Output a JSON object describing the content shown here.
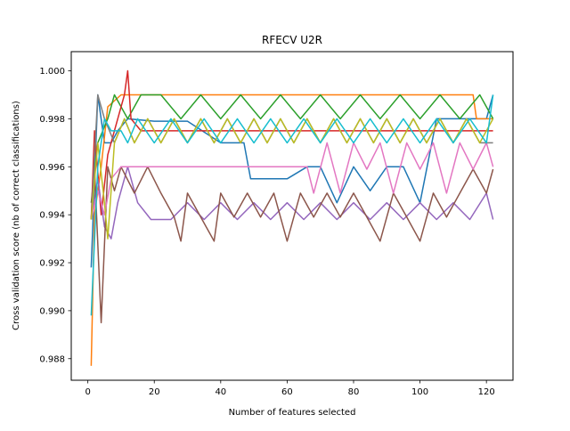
{
  "chart_data": {
    "type": "line",
    "title": "RFECV U2R",
    "xlabel": "Number of features selected",
    "ylabel": "Cross validation score (nb of correct classifications)",
    "xlim": [
      -5,
      128
    ],
    "ylim": [
      0.9871,
      1.0008
    ],
    "xticks": [
      0,
      20,
      40,
      60,
      80,
      100,
      120
    ],
    "yticks": [
      0.988,
      0.99,
      0.992,
      0.994,
      0.996,
      0.998,
      1.0
    ],
    "ytick_labels": [
      "0.988",
      "0.990",
      "0.992",
      "0.994",
      "0.996",
      "0.998",
      "1.000"
    ],
    "grid": false,
    "x_range": [
      1,
      122
    ],
    "series": [
      {
        "color": "#1f77b4",
        "points": [
          [
            1,
            0.9918
          ],
          [
            3,
            0.999
          ],
          [
            5,
            0.997
          ],
          [
            7,
            0.997
          ],
          [
            9,
            0.9975
          ],
          [
            12,
            0.998
          ],
          [
            20,
            0.9979
          ],
          [
            30,
            0.9979
          ],
          [
            40,
            0.997
          ],
          [
            47,
            0.997
          ],
          [
            49,
            0.9955
          ],
          [
            55,
            0.9955
          ],
          [
            60,
            0.9955
          ],
          [
            66,
            0.996
          ],
          [
            70,
            0.996
          ],
          [
            75,
            0.9945
          ],
          [
            80,
            0.996
          ],
          [
            85,
            0.995
          ],
          [
            90,
            0.996
          ],
          [
            95,
            0.996
          ],
          [
            100,
            0.9945
          ],
          [
            105,
            0.998
          ],
          [
            110,
            0.998
          ],
          [
            115,
            0.998
          ],
          [
            120,
            0.998
          ],
          [
            122,
            0.999
          ]
        ]
      },
      {
        "color": "#ff7f0e",
        "points": [
          [
            1,
            0.9877
          ],
          [
            2,
            0.994
          ],
          [
            4,
            0.996
          ],
          [
            6,
            0.9985
          ],
          [
            10,
            0.999
          ],
          [
            20,
            0.999
          ],
          [
            40,
            0.999
          ],
          [
            60,
            0.999
          ],
          [
            80,
            0.999
          ],
          [
            100,
            0.999
          ],
          [
            112,
            0.999
          ],
          [
            116,
            0.999
          ],
          [
            117,
            0.998
          ],
          [
            122,
            0.998
          ]
        ]
      },
      {
        "color": "#2ca02c",
        "points": [
          [
            1,
            0.9945
          ],
          [
            3,
            0.997
          ],
          [
            6,
            0.998
          ],
          [
            8,
            0.999
          ],
          [
            12,
            0.998
          ],
          [
            16,
            0.999
          ],
          [
            22,
            0.999
          ],
          [
            28,
            0.998
          ],
          [
            34,
            0.999
          ],
          [
            40,
            0.998
          ],
          [
            46,
            0.999
          ],
          [
            52,
            0.998
          ],
          [
            58,
            0.999
          ],
          [
            64,
            0.998
          ],
          [
            70,
            0.999
          ],
          [
            76,
            0.998
          ],
          [
            82,
            0.999
          ],
          [
            88,
            0.998
          ],
          [
            94,
            0.999
          ],
          [
            100,
            0.998
          ],
          [
            106,
            0.999
          ],
          [
            112,
            0.998
          ],
          [
            118,
            0.999
          ],
          [
            122,
            0.998
          ]
        ]
      },
      {
        "color": "#d62728",
        "points": [
          [
            1,
            0.9938
          ],
          [
            2,
            0.9975
          ],
          [
            4,
            0.994
          ],
          [
            6,
            0.9965
          ],
          [
            9,
            0.998
          ],
          [
            11,
            0.999
          ],
          [
            12,
            1.0
          ],
          [
            13,
            0.998
          ],
          [
            16,
            0.9975
          ],
          [
            24,
            0.9975
          ],
          [
            40,
            0.9975
          ],
          [
            60,
            0.9975
          ],
          [
            80,
            0.9975
          ],
          [
            100,
            0.9975
          ],
          [
            120,
            0.9975
          ],
          [
            122,
            0.9975
          ]
        ]
      },
      {
        "color": "#9467bd",
        "points": [
          [
            1,
            0.9938
          ],
          [
            3,
            0.9955
          ],
          [
            5,
            0.9935
          ],
          [
            7,
            0.993
          ],
          [
            9,
            0.9945
          ],
          [
            12,
            0.996
          ],
          [
            15,
            0.9945
          ],
          [
            19,
            0.9938
          ],
          [
            25,
            0.9938
          ],
          [
            30,
            0.9945
          ],
          [
            35,
            0.9938
          ],
          [
            40,
            0.9945
          ],
          [
            45,
            0.9938
          ],
          [
            50,
            0.9945
          ],
          [
            55,
            0.9938
          ],
          [
            60,
            0.9945
          ],
          [
            65,
            0.9938
          ],
          [
            70,
            0.9945
          ],
          [
            75,
            0.9938
          ],
          [
            80,
            0.9945
          ],
          [
            85,
            0.9938
          ],
          [
            90,
            0.9945
          ],
          [
            95,
            0.9938
          ],
          [
            100,
            0.9945
          ],
          [
            105,
            0.9938
          ],
          [
            110,
            0.9945
          ],
          [
            115,
            0.9938
          ],
          [
            120,
            0.9949
          ],
          [
            122,
            0.9938
          ]
        ]
      },
      {
        "color": "#8c564b",
        "points": [
          [
            1,
            0.9938
          ],
          [
            2,
            0.996
          ],
          [
            4,
            0.9895
          ],
          [
            6,
            0.996
          ],
          [
            8,
            0.995
          ],
          [
            10,
            0.996
          ],
          [
            14,
            0.9949
          ],
          [
            18,
            0.996
          ],
          [
            22,
            0.9949
          ],
          [
            26,
            0.9939
          ],
          [
            28,
            0.9929
          ],
          [
            30,
            0.9949
          ],
          [
            34,
            0.9939
          ],
          [
            38,
            0.9929
          ],
          [
            40,
            0.9949
          ],
          [
            44,
            0.9939
          ],
          [
            48,
            0.9949
          ],
          [
            52,
            0.9939
          ],
          [
            56,
            0.9949
          ],
          [
            60,
            0.9929
          ],
          [
            64,
            0.9949
          ],
          [
            68,
            0.9939
          ],
          [
            72,
            0.9949
          ],
          [
            76,
            0.9939
          ],
          [
            80,
            0.9949
          ],
          [
            84,
            0.9939
          ],
          [
            88,
            0.9929
          ],
          [
            92,
            0.9949
          ],
          [
            96,
            0.9939
          ],
          [
            100,
            0.9929
          ],
          [
            104,
            0.9949
          ],
          [
            108,
            0.9939
          ],
          [
            112,
            0.9949
          ],
          [
            116,
            0.9959
          ],
          [
            120,
            0.9949
          ],
          [
            122,
            0.9959
          ]
        ]
      },
      {
        "color": "#e377c2",
        "points": [
          [
            1,
            0.9938
          ],
          [
            3,
            0.995
          ],
          [
            5,
            0.994
          ],
          [
            7,
            0.9955
          ],
          [
            10,
            0.996
          ],
          [
            20,
            0.996
          ],
          [
            30,
            0.996
          ],
          [
            40,
            0.996
          ],
          [
            50,
            0.996
          ],
          [
            60,
            0.996
          ],
          [
            66,
            0.996
          ],
          [
            68,
            0.9949
          ],
          [
            72,
            0.997
          ],
          [
            76,
            0.9949
          ],
          [
            80,
            0.997
          ],
          [
            84,
            0.9959
          ],
          [
            88,
            0.997
          ],
          [
            92,
            0.9949
          ],
          [
            96,
            0.997
          ],
          [
            100,
            0.9959
          ],
          [
            104,
            0.997
          ],
          [
            108,
            0.9949
          ],
          [
            112,
            0.997
          ],
          [
            116,
            0.9959
          ],
          [
            120,
            0.997
          ],
          [
            122,
            0.996
          ]
        ]
      },
      {
        "color": "#7f7f7f",
        "points": [
          [
            1,
            0.9938
          ],
          [
            3,
            0.999
          ],
          [
            5,
            0.998
          ],
          [
            8,
            0.997
          ],
          [
            11,
            0.998
          ],
          [
            14,
            0.997
          ],
          [
            18,
            0.998
          ],
          [
            22,
            0.997
          ],
          [
            26,
            0.998
          ],
          [
            30,
            0.997
          ],
          [
            34,
            0.998
          ],
          [
            38,
            0.997
          ],
          [
            42,
            0.998
          ],
          [
            46,
            0.997
          ],
          [
            50,
            0.998
          ],
          [
            54,
            0.997
          ],
          [
            58,
            0.998
          ],
          [
            62,
            0.997
          ],
          [
            66,
            0.998
          ],
          [
            70,
            0.997
          ],
          [
            74,
            0.998
          ],
          [
            78,
            0.997
          ],
          [
            82,
            0.998
          ],
          [
            86,
            0.997
          ],
          [
            90,
            0.998
          ],
          [
            94,
            0.997
          ],
          [
            98,
            0.998
          ],
          [
            102,
            0.997
          ],
          [
            106,
            0.998
          ],
          [
            110,
            0.997
          ],
          [
            114,
            0.998
          ],
          [
            118,
            0.997
          ],
          [
            122,
            0.997
          ]
        ]
      },
      {
        "color": "#bcbd22",
        "points": [
          [
            1,
            0.9938
          ],
          [
            3,
            0.997
          ],
          [
            5,
            0.9945
          ],
          [
            6,
            0.993
          ],
          [
            8,
            0.997
          ],
          [
            11,
            0.998
          ],
          [
            14,
            0.997
          ],
          [
            18,
            0.998
          ],
          [
            22,
            0.997
          ],
          [
            26,
            0.998
          ],
          [
            30,
            0.997
          ],
          [
            34,
            0.998
          ],
          [
            38,
            0.997
          ],
          [
            42,
            0.998
          ],
          [
            46,
            0.997
          ],
          [
            50,
            0.998
          ],
          [
            54,
            0.997
          ],
          [
            58,
            0.998
          ],
          [
            62,
            0.997
          ],
          [
            66,
            0.998
          ],
          [
            70,
            0.997
          ],
          [
            74,
            0.998
          ],
          [
            78,
            0.997
          ],
          [
            82,
            0.998
          ],
          [
            86,
            0.997
          ],
          [
            90,
            0.998
          ],
          [
            94,
            0.997
          ],
          [
            98,
            0.998
          ],
          [
            102,
            0.997
          ],
          [
            106,
            0.998
          ],
          [
            110,
            0.997
          ],
          [
            114,
            0.998
          ],
          [
            118,
            0.997
          ],
          [
            122,
            0.998
          ]
        ]
      },
      {
        "color": "#17becf",
        "points": [
          [
            1,
            0.9898
          ],
          [
            3,
            0.996
          ],
          [
            5,
            0.998
          ],
          [
            7,
            0.9975
          ],
          [
            10,
            0.9975
          ],
          [
            12,
            0.997
          ],
          [
            15,
            0.998
          ],
          [
            20,
            0.997
          ],
          [
            25,
            0.998
          ],
          [
            30,
            0.997
          ],
          [
            35,
            0.998
          ],
          [
            40,
            0.997
          ],
          [
            45,
            0.998
          ],
          [
            50,
            0.997
          ],
          [
            55,
            0.998
          ],
          [
            60,
            0.997
          ],
          [
            65,
            0.998
          ],
          [
            70,
            0.997
          ],
          [
            75,
            0.998
          ],
          [
            80,
            0.997
          ],
          [
            85,
            0.998
          ],
          [
            90,
            0.997
          ],
          [
            95,
            0.998
          ],
          [
            100,
            0.997
          ],
          [
            105,
            0.998
          ],
          [
            110,
            0.997
          ],
          [
            115,
            0.998
          ],
          [
            120,
            0.997
          ],
          [
            122,
            0.999
          ]
        ]
      }
    ]
  }
}
